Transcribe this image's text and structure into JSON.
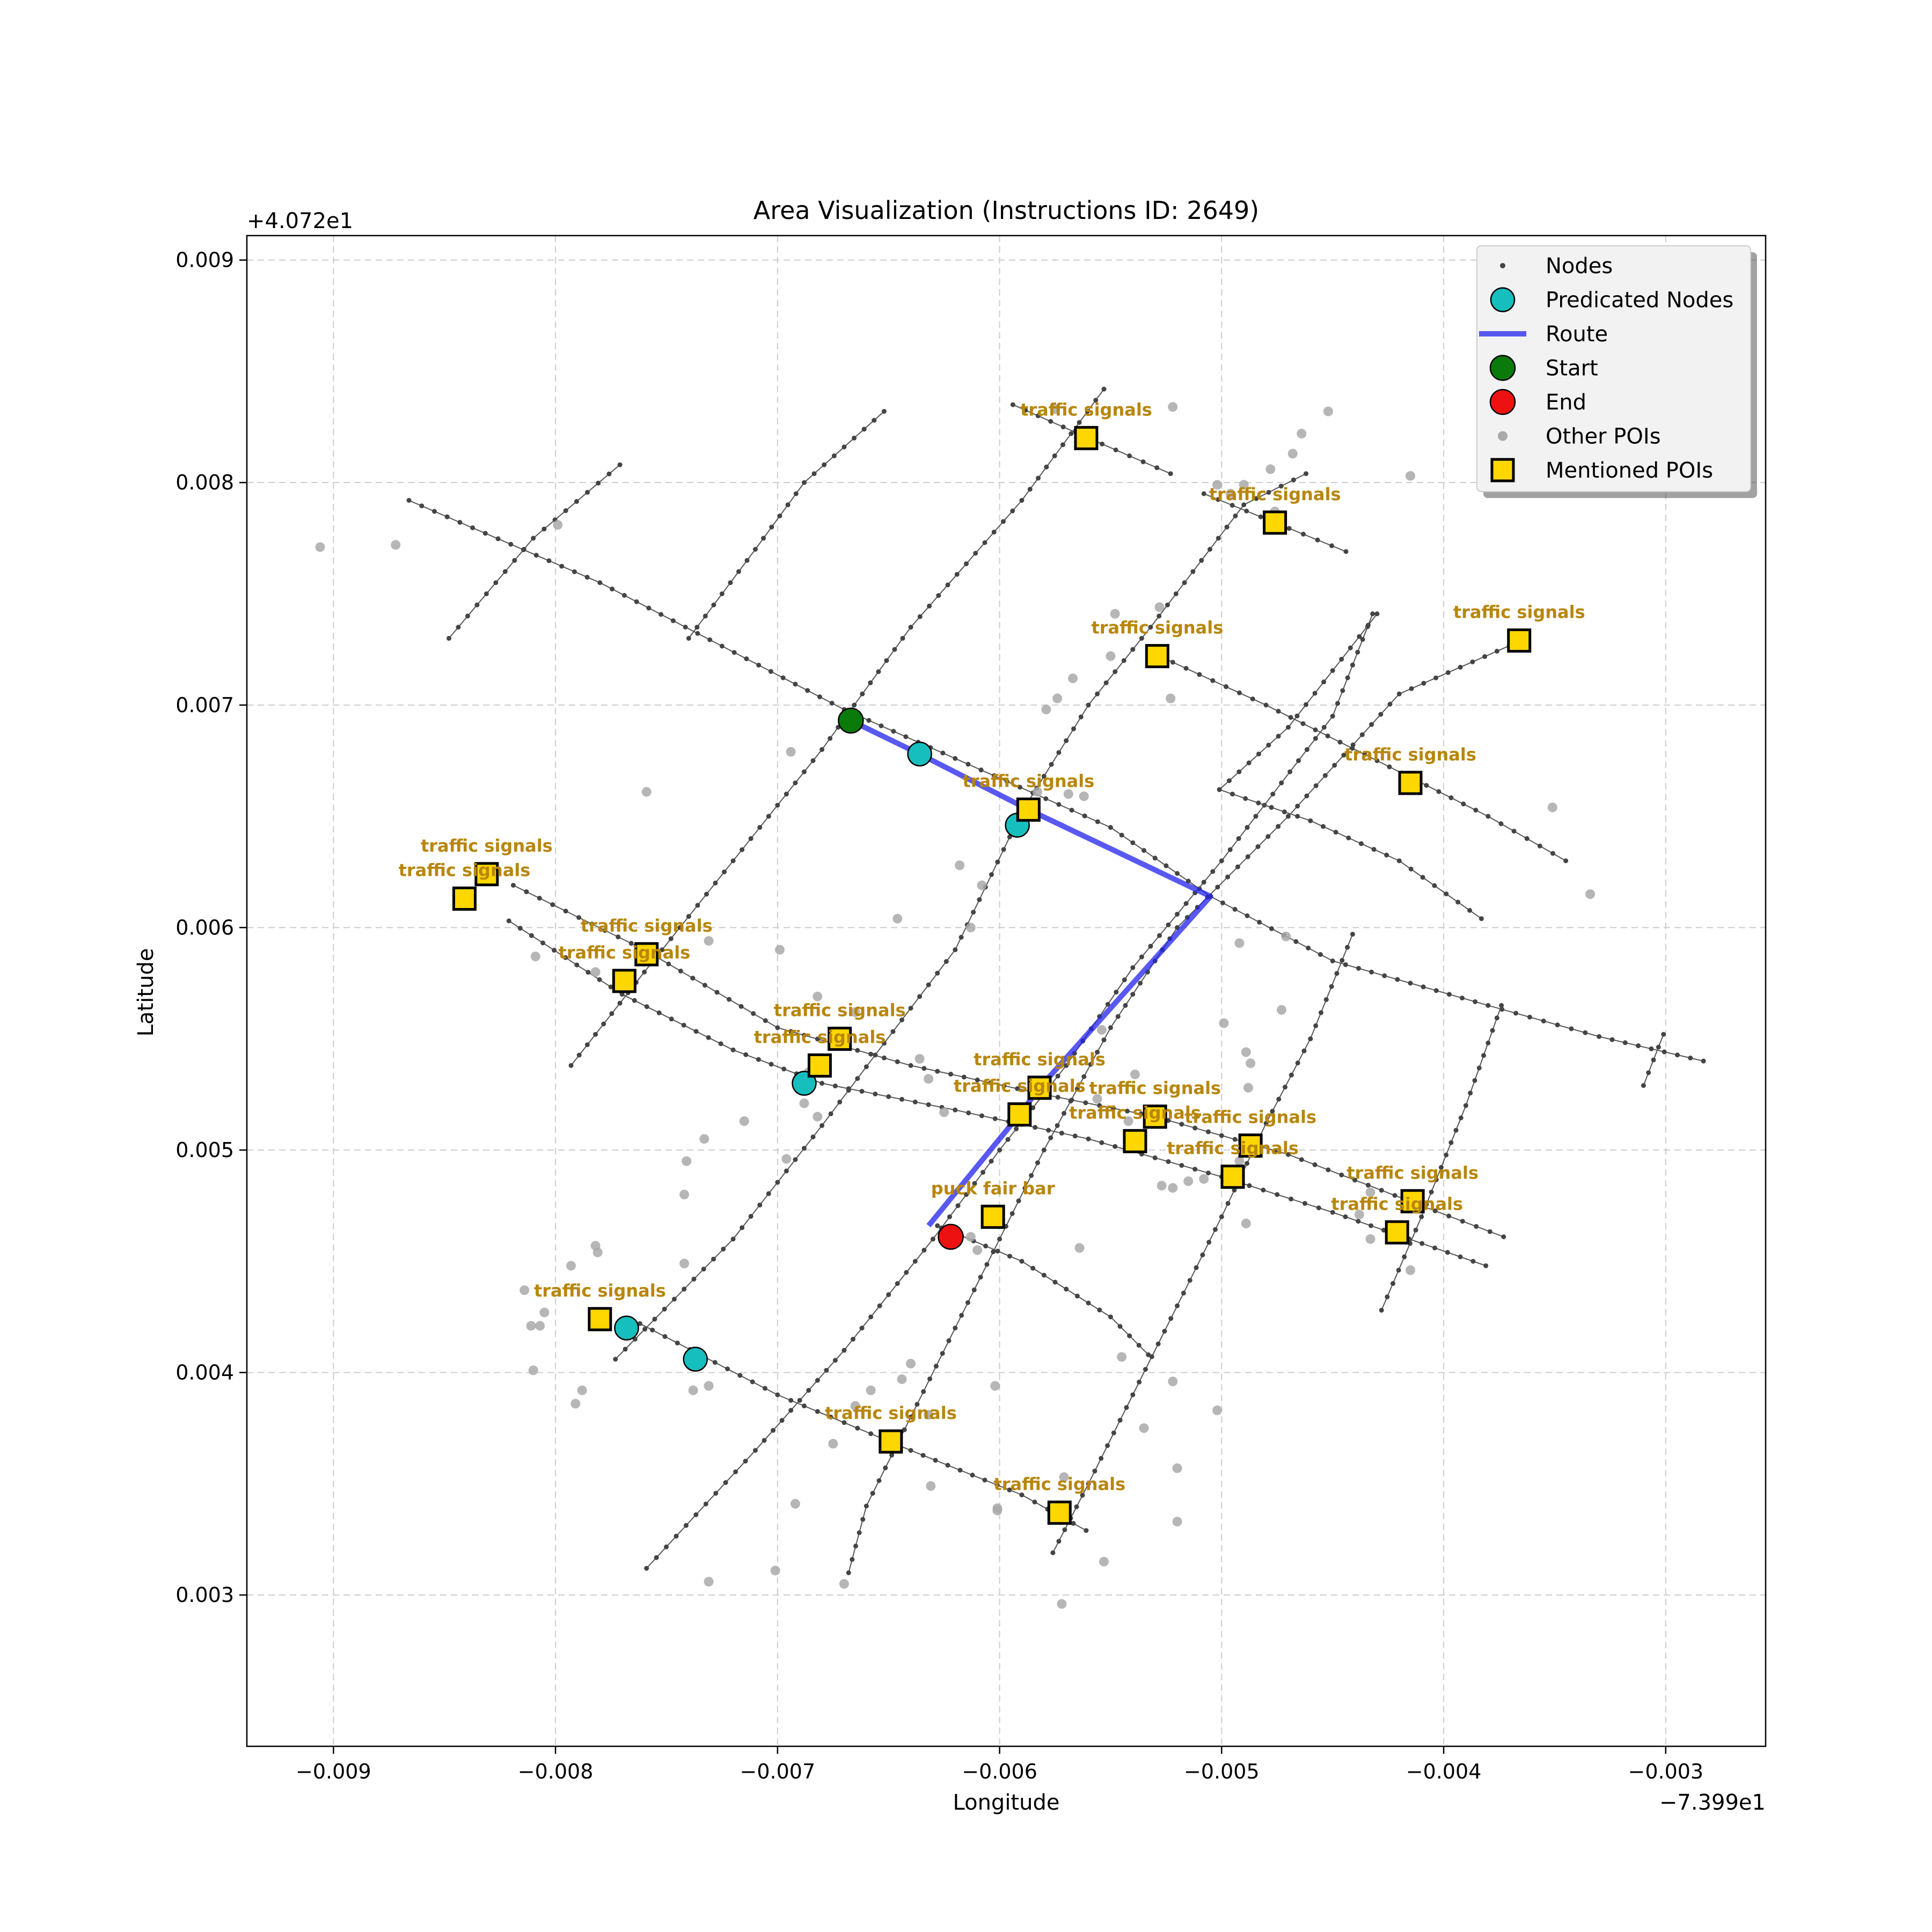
{
  "chart_data": {
    "type": "scatter",
    "title": "Area Visualization (Instructions ID: 2649)",
    "xlabel": "Longitude",
    "ylabel": "Latitude",
    "x_offset_label": "−7.399e1",
    "y_offset_label": "+4.072e1",
    "xlim": [
      -0.00939,
      -0.00255
    ],
    "ylim": [
      0.00232,
      0.00911
    ],
    "x_ticks": [
      -0.009,
      -0.008,
      -0.007,
      -0.006,
      -0.005,
      -0.004,
      -0.003
    ],
    "x_tick_labels": [
      "−0.009",
      "−0.008",
      "−0.007",
      "−0.006",
      "−0.005",
      "−0.004",
      "−0.003"
    ],
    "y_ticks": [
      0.003,
      0.004,
      0.005,
      0.006,
      0.007,
      0.008,
      0.009
    ],
    "y_tick_labels": [
      "0.003",
      "0.004",
      "0.005",
      "0.006",
      "0.007",
      "0.008",
      "0.009"
    ],
    "grid": true,
    "legend_position": "upper-right",
    "legend": [
      {
        "label": "Nodes",
        "marker": "small-dot"
      },
      {
        "label": "Predicated Nodes",
        "marker": "cyan-circle"
      },
      {
        "label": "Route",
        "marker": "line"
      },
      {
        "label": "Start",
        "marker": "green-circle"
      },
      {
        "label": "End",
        "marker": "red-circle"
      },
      {
        "label": "Other POIs",
        "marker": "gray-dot"
      },
      {
        "label": "Mentioned POIs",
        "marker": "gold-square"
      }
    ],
    "colors": {
      "node": "#444444",
      "road": "#555555",
      "predicated": "#17bebe",
      "route": "#2222ee",
      "start": "#0a7a0a",
      "end": "#ee1111",
      "other_poi": "#a9a9a9",
      "mentioned_poi": "#ffd700",
      "poi_label": "#b8860b",
      "grid": "#cccccc"
    },
    "roads": [
      [
        [
          -0.00866,
          0.00792
        ],
        [
          -0.0078,
          0.00755
        ],
        [
          -0.0067,
          0.00698
        ],
        [
          -0.0062,
          0.00676
        ],
        [
          -0.0055,
          0.00645
        ],
        [
          -0.00505,
          0.00614
        ],
        [
          -0.0045,
          0.00585
        ],
        [
          -0.0038,
          0.00565
        ],
        [
          -0.0033,
          0.00551
        ],
        [
          -0.00283,
          0.0054
        ]
      ],
      [
        [
          -0.00848,
          0.0073
        ],
        [
          -0.0081,
          0.00775
        ],
        [
          -0.00771,
          0.00808
        ]
      ],
      [
        [
          -0.00793,
          0.00538
        ],
        [
          -0.0076,
          0.0058
        ],
        [
          -0.0072,
          0.0063
        ],
        [
          -0.0068,
          0.0068
        ],
        [
          -0.0064,
          0.00735
        ],
        [
          -0.0059,
          0.00792
        ],
        [
          -0.00553,
          0.00842
        ]
      ],
      [
        [
          -0.0074,
          0.0073
        ],
        [
          -0.0071,
          0.0077
        ],
        [
          -0.00688,
          0.008
        ],
        [
          -0.00652,
          0.00832
        ]
      ],
      [
        [
          -0.00819,
          0.00619
        ],
        [
          -0.0076,
          0.0059
        ],
        [
          -0.007,
          0.00555
        ],
        [
          -0.0064,
          0.00538
        ],
        [
          -0.0058,
          0.00525
        ],
        [
          -0.0053,
          0.00515
        ],
        [
          -0.0047,
          0.00498
        ],
        [
          -0.0041,
          0.00475
        ],
        [
          -0.00373,
          0.00461
        ]
      ],
      [
        [
          -0.00821,
          0.00603
        ],
        [
          -0.0077,
          0.0057
        ],
        [
          -0.0072,
          0.00545
        ],
        [
          -0.0068,
          0.0053
        ],
        [
          -0.0062,
          0.00518
        ],
        [
          -0.0056,
          0.00505
        ],
        [
          -0.005,
          0.00488
        ],
        [
          -0.0045,
          0.00472
        ],
        [
          -0.00381,
          0.00448
        ]
      ],
      [
        [
          -0.00773,
          0.00406
        ],
        [
          -0.0072,
          0.0046
        ],
        [
          -0.0068,
          0.00511
        ],
        [
          -0.00652,
          0.00548
        ],
        [
          -0.0062,
          0.0059
        ],
        [
          -0.0059,
          0.00652
        ],
        [
          -0.0056,
          0.007
        ],
        [
          -0.00532,
          0.00735
        ],
        [
          -0.0049,
          0.0079
        ],
        [
          -0.00462,
          0.00804
        ]
      ],
      [
        [
          -0.00759,
          0.00312
        ],
        [
          -0.0071,
          0.00365
        ],
        [
          -0.0067,
          0.0041
        ],
        [
          -0.0063,
          0.0046
        ],
        [
          -0.006,
          0.005
        ],
        [
          -0.0057,
          0.00538
        ],
        [
          -0.0054,
          0.00582
        ],
        [
          -0.005,
          0.0063
        ],
        [
          -0.0045,
          0.00695
        ],
        [
          -0.00432,
          0.00741
        ]
      ],
      [
        [
          -0.00762,
          0.00422
        ],
        [
          -0.007,
          0.0039
        ],
        [
          -0.0064,
          0.00365
        ],
        [
          -0.0059,
          0.00345
        ],
        [
          -0.00561,
          0.00329
        ]
      ],
      [
        [
          -0.00628,
          0.00466
        ],
        [
          -0.0059,
          0.0045
        ],
        [
          -0.0055,
          0.00425
        ],
        [
          -0.00533,
          0.00408
        ]
      ],
      [
        [
          -0.00668,
          0.0031
        ],
        [
          -0.0066,
          0.0034
        ],
        [
          -0.0064,
          0.0038
        ],
        [
          -0.0062,
          0.0042
        ],
        [
          -0.006,
          0.0046
        ],
        [
          -0.0058,
          0.005
        ],
        [
          -0.0055,
          0.00555
        ],
        [
          -0.0052,
          0.006
        ],
        [
          -0.0047,
          0.0065
        ],
        [
          -0.0042,
          0.00705
        ],
        [
          -0.00365,
          0.00729
        ]
      ],
      [
        [
          -0.00576,
          0.00319
        ],
        [
          -0.0056,
          0.0035
        ],
        [
          -0.0054,
          0.0039
        ],
        [
          -0.0052,
          0.0043
        ],
        [
          -0.005,
          0.0047
        ],
        [
          -0.0048,
          0.00512
        ],
        [
          -0.0046,
          0.0055
        ],
        [
          -0.00441,
          0.00597
        ]
      ],
      [
        [
          -0.00501,
          0.00662
        ],
        [
          -0.0047,
          0.0069
        ],
        [
          -0.0043,
          0.00741
        ]
      ],
      [
        [
          -0.00501,
          0.00662
        ],
        [
          -0.0046,
          0.00648
        ],
        [
          -0.0042,
          0.0063
        ],
        [
          -0.00383,
          0.00604
        ]
      ],
      [
        [
          -0.00528,
          0.00722
        ],
        [
          -0.0048,
          0.007
        ],
        [
          -0.0043,
          0.00675
        ],
        [
          -0.0038,
          0.0065
        ],
        [
          -0.00345,
          0.0063
        ]
      ],
      [
        [
          -0.00594,
          0.00835
        ],
        [
          -0.0056,
          0.0082
        ],
        [
          -0.00523,
          0.00804
        ]
      ],
      [
        [
          -0.00508,
          0.00795
        ],
        [
          -0.00476,
          0.00782
        ],
        [
          -0.00444,
          0.00769
        ]
      ],
      [
        [
          -0.00428,
          0.00428
        ],
        [
          -0.0041,
          0.0047
        ],
        [
          -0.0039,
          0.0052
        ],
        [
          -0.00374,
          0.00565
        ]
      ],
      [
        [
          -0.0031,
          0.00529
        ],
        [
          -0.00301,
          0.00552
        ]
      ]
    ],
    "route": [
      [
        -0.00667,
        0.00693
      ],
      [
        -0.00636,
        0.00678
      ],
      [
        -0.00587,
        0.00653
      ],
      [
        -0.00505,
        0.00614
      ],
      [
        -0.00582,
        0.00528
      ],
      [
        -0.00591,
        0.00516
      ],
      [
        -0.00632,
        0.00466
      ]
    ],
    "predicated_nodes": [
      [
        -0.00636,
        0.00678
      ],
      [
        -0.00592,
        0.00646
      ],
      [
        -0.00688,
        0.0053
      ],
      [
        -0.00768,
        0.0042
      ],
      [
        -0.00737,
        0.00406
      ]
    ],
    "start": [
      -0.00667,
      0.00693
    ],
    "end": [
      -0.00622,
      0.00461
    ],
    "other_pois": [
      [
        -0.00906,
        0.00771
      ],
      [
        -0.00872,
        0.00772
      ],
      [
        -0.00799,
        0.00781
      ],
      [
        -0.00759,
        0.00661
      ],
      [
        -0.00694,
        0.00679
      ],
      [
        -0.00575,
        0.00833
      ],
      [
        -0.00522,
        0.00834
      ],
      [
        -0.0049,
        0.00799
      ],
      [
        -0.00478,
        0.00806
      ],
      [
        -0.00468,
        0.00813
      ],
      [
        -0.00464,
        0.00822
      ],
      [
        -0.00452,
        0.00832
      ],
      [
        -0.00415,
        0.00803
      ],
      [
        -0.00528,
        0.00744
      ],
      [
        -0.00548,
        0.00741
      ],
      [
        -0.0055,
        0.00722
      ],
      [
        -0.00567,
        0.00712
      ],
      [
        -0.00574,
        0.00703
      ],
      [
        -0.00579,
        0.00698
      ],
      [
        -0.00523,
        0.00703
      ],
      [
        -0.00583,
        0.00661
      ],
      [
        -0.00569,
        0.0066
      ],
      [
        -0.00562,
        0.00659
      ],
      [
        -0.00618,
        0.00628
      ],
      [
        -0.00608,
        0.00619
      ],
      [
        -0.00646,
        0.00604
      ],
      [
        -0.00613,
        0.006
      ],
      [
        -0.00731,
        0.00594
      ],
      [
        -0.00699,
        0.0059
      ],
      [
        -0.00809,
        0.00587
      ],
      [
        -0.00782,
        0.0058
      ],
      [
        -0.00682,
        0.00569
      ],
      [
        -0.00665,
        0.00562
      ],
      [
        -0.00686,
        0.00535
      ],
      [
        -0.00688,
        0.00521
      ],
      [
        -0.00682,
        0.00515
      ],
      [
        -0.00715,
        0.00513
      ],
      [
        -0.00733,
        0.00505
      ],
      [
        -0.00741,
        0.00495
      ],
      [
        -0.00696,
        0.00496
      ],
      [
        -0.00742,
        0.0048
      ],
      [
        -0.00782,
        0.00457
      ],
      [
        -0.00781,
        0.00454
      ],
      [
        -0.00793,
        0.00448
      ],
      [
        -0.00742,
        0.00449
      ],
      [
        -0.00814,
        0.00437
      ],
      [
        -0.00805,
        0.00427
      ],
      [
        -0.00811,
        0.00421
      ],
      [
        -0.00807,
        0.00421
      ],
      [
        -0.0081,
        0.00401
      ],
      [
        -0.00791,
        0.00386
      ],
      [
        -0.00788,
        0.00392
      ],
      [
        -0.00731,
        0.00394
      ],
      [
        -0.00738,
        0.00392
      ],
      [
        -0.00658,
        0.00392
      ],
      [
        -0.00665,
        0.00385
      ],
      [
        -0.00675,
        0.00368
      ],
      [
        -0.00692,
        0.00341
      ],
      [
        -0.00701,
        0.00311
      ],
      [
        -0.0067,
        0.00305
      ],
      [
        -0.00731,
        0.00306
      ],
      [
        -0.00644,
        0.00397
      ],
      [
        -0.0064,
        0.00404
      ],
      [
        -0.00602,
        0.00394
      ],
      [
        -0.00632,
        0.00381
      ],
      [
        -0.00631,
        0.00349
      ],
      [
        -0.00601,
        0.00338
      ],
      [
        -0.00601,
        0.00339
      ],
      [
        -0.00571,
        0.00353
      ],
      [
        -0.00572,
        0.00296
      ],
      [
        -0.00553,
        0.00315
      ],
      [
        -0.00545,
        0.00407
      ],
      [
        -0.0052,
        0.00357
      ],
      [
        -0.0052,
        0.00333
      ],
      [
        -0.00522,
        0.00396
      ],
      [
        -0.00535,
        0.00375
      ],
      [
        -0.00502,
        0.00383
      ],
      [
        -0.00564,
        0.00456
      ],
      [
        -0.0061,
        0.00455
      ],
      [
        -0.00613,
        0.00461
      ],
      [
        -0.00636,
        0.00541
      ],
      [
        -0.00625,
        0.00517
      ],
      [
        -0.00632,
        0.00532
      ],
      [
        -0.00554,
        0.00554
      ],
      [
        -0.00539,
        0.00534
      ],
      [
        -0.00556,
        0.00523
      ],
      [
        -0.00542,
        0.00513
      ],
      [
        -0.00527,
        0.00484
      ],
      [
        -0.00522,
        0.00483
      ],
      [
        -0.00515,
        0.00486
      ],
      [
        -0.00508,
        0.00487
      ],
      [
        -0.00492,
        0.00495
      ],
      [
        -0.00499,
        0.00557
      ],
      [
        -0.00489,
        0.00544
      ],
      [
        -0.00487,
        0.00539
      ],
      [
        -0.00488,
        0.00528
      ],
      [
        -0.00473,
        0.00563
      ],
      [
        -0.00492,
        0.00593
      ],
      [
        -0.00471,
        0.00596
      ],
      [
        -0.00433,
        0.00481
      ],
      [
        -0.00438,
        0.00471
      ],
      [
        -0.00433,
        0.0046
      ],
      [
        -0.00415,
        0.00446
      ],
      [
        -0.00489,
        0.00467
      ],
      [
        -0.00351,
        0.00654
      ],
      [
        -0.00334,
        0.00615
      ],
      [
        -0.00476,
        0.00787
      ],
      [
        -0.00496,
        0.00795
      ],
      [
        -0.00502,
        0.00799
      ]
    ],
    "mentioned_pois": [
      {
        "label": "traffic signals",
        "x": -0.00561,
        "y": 0.0082
      },
      {
        "label": "traffic signals",
        "x": -0.00476,
        "y": 0.00782
      },
      {
        "label": "traffic signals",
        "x": -0.00529,
        "y": 0.00722
      },
      {
        "label": "traffic signals",
        "x": -0.00366,
        "y": 0.00729
      },
      {
        "label": "traffic signals",
        "x": -0.00587,
        "y": 0.00653
      },
      {
        "label": "traffic signals",
        "x": -0.00415,
        "y": 0.00665
      },
      {
        "label": "traffic signals",
        "x": -0.00831,
        "y": 0.00624
      },
      {
        "label": "traffic signals",
        "x": -0.00841,
        "y": 0.00613
      },
      {
        "label": "traffic signals",
        "x": -0.00759,
        "y": 0.00588
      },
      {
        "label": "traffic signals",
        "x": -0.00769,
        "y": 0.00576
      },
      {
        "label": "traffic signals",
        "x": -0.00672,
        "y": 0.0055
      },
      {
        "label": "traffic signals",
        "x": -0.00681,
        "y": 0.00538
      },
      {
        "label": "traffic signals",
        "x": -0.00582,
        "y": 0.00528
      },
      {
        "label": "traffic signals",
        "x": -0.00591,
        "y": 0.00516
      },
      {
        "label": "traffic signals",
        "x": -0.0053,
        "y": 0.00515
      },
      {
        "label": "traffic signals",
        "x": -0.00539,
        "y": 0.00504
      },
      {
        "label": "traffic signals",
        "x": -0.00487,
        "y": 0.00502
      },
      {
        "label": "traffic signals",
        "x": -0.00495,
        "y": 0.00488
      },
      {
        "label": "puck fair bar",
        "x": -0.00603,
        "y": 0.0047
      },
      {
        "label": "traffic signals",
        "x": -0.00414,
        "y": 0.00477
      },
      {
        "label": "traffic signals",
        "x": -0.00421,
        "y": 0.00463
      },
      {
        "label": "traffic signals",
        "x": -0.0078,
        "y": 0.00424
      },
      {
        "label": "traffic signals",
        "x": -0.00649,
        "y": 0.00369
      },
      {
        "label": "traffic signals",
        "x": -0.00573,
        "y": 0.00337
      }
    ]
  }
}
